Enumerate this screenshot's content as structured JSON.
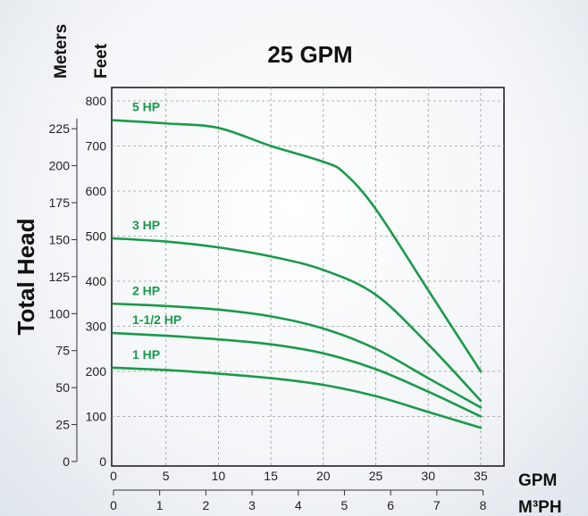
{
  "chart_data": {
    "type": "line",
    "title": "25 GPM",
    "ylabel": "Total Head",
    "y_units": {
      "left_outer": "Meters",
      "left_inner": "Feet"
    },
    "x_units": {
      "primary": "GPM",
      "secondary": "M³PH"
    },
    "x_ticks": [
      0,
      5,
      10,
      15,
      20,
      25,
      30,
      35
    ],
    "x_secondary_ticks": [
      0,
      1,
      2,
      3,
      4,
      5,
      6,
      7,
      8
    ],
    "y_ticks_feet": [
      0,
      100,
      200,
      300,
      400,
      500,
      600,
      700,
      800
    ],
    "y_ticks_meters": [
      0,
      25,
      50,
      75,
      100,
      125,
      150,
      175,
      200,
      225
    ],
    "xlim": [
      0,
      38
    ],
    "ylim_feet": [
      0,
      800
    ],
    "grid": true,
    "line_color": "#1a9a4a",
    "label_color": "#1a9a4a",
    "series": [
      {
        "name": "5 HP",
        "x": [
          0,
          5,
          10,
          15,
          20,
          22,
          25,
          30,
          35
        ],
        "y": [
          757,
          750,
          740,
          700,
          665,
          640,
          560,
          380,
          200
        ]
      },
      {
        "name": "3 HP",
        "x": [
          0,
          5,
          10,
          15,
          20,
          25,
          30,
          35
        ],
        "y": [
          495,
          488,
          475,
          455,
          425,
          370,
          260,
          135
        ]
      },
      {
        "name": "2 HP",
        "x": [
          0,
          5,
          10,
          15,
          20,
          25,
          30,
          35
        ],
        "y": [
          350,
          345,
          337,
          322,
          295,
          250,
          185,
          120
        ]
      },
      {
        "name": "1-1/2 HP",
        "x": [
          0,
          5,
          10,
          15,
          20,
          25,
          30,
          35
        ],
        "y": [
          285,
          279,
          271,
          260,
          240,
          205,
          155,
          100
        ]
      },
      {
        "name": "1 HP",
        "x": [
          0,
          5,
          10,
          15,
          20,
          25,
          30,
          35
        ],
        "y": [
          208,
          203,
          195,
          185,
          170,
          145,
          110,
          75
        ]
      }
    ]
  }
}
